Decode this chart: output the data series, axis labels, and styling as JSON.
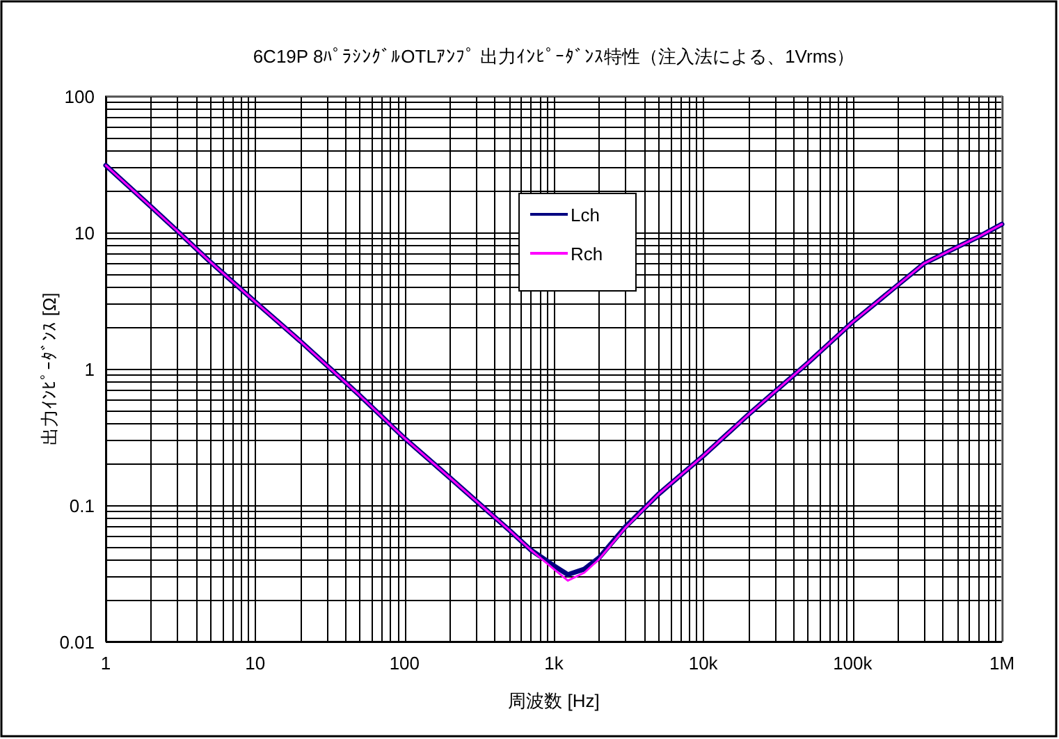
{
  "chart_data": {
    "type": "line",
    "title": "6C19P 8ﾊﾟﾗｼﾝｸﾞﾙOTLｱﾝﾌﾟ 出力ｲﾝﾋﾟｰﾀﾞﾝｽ特性（注入法による、1Vrms）",
    "xlabel": "周波数 [Hz]",
    "ylabel": "出力ｲﾝﾋﾟｰﾀﾞﾝｽ [Ω]",
    "log": "xy",
    "grid": true,
    "legend": "top",
    "marker": "none",
    "line_style": "solid",
    "xlim": [
      1,
      1000000
    ],
    "ylim": [
      0.01,
      100
    ],
    "xticks": [
      1,
      10,
      100,
      {
        "value": 1000,
        "label": "1k"
      },
      {
        "value": 10000,
        "label": "10k"
      },
      {
        "value": 100000,
        "label": "100k"
      },
      {
        "value": 1000000,
        "label": "1M"
      }
    ],
    "yticks": [
      0.01,
      0.1,
      1,
      10,
      100
    ],
    "series": [
      {
        "name": "Lch",
        "color": "#000080",
        "x": [
          1,
          2,
          3,
          5,
          10,
          20,
          50,
          100,
          200,
          500,
          700,
          1000,
          1240,
          1600,
          2000,
          3000,
          5000,
          10000,
          20000,
          50000,
          100000,
          200000,
          300000,
          500000,
          700000,
          1000000
        ],
        "values": [
          31,
          15.5,
          10.3,
          6.1,
          3.1,
          1.6,
          0.64,
          0.31,
          0.16,
          0.066,
          0.047,
          0.036,
          0.031,
          0.034,
          0.041,
          0.069,
          0.12,
          0.23,
          0.46,
          1.1,
          2.2,
          4.1,
          5.9,
          7.8,
          9.3,
          11.5
        ]
      },
      {
        "name": "Rch",
        "color": "#ff00ff",
        "x": [
          1,
          2,
          3,
          5,
          10,
          20,
          50,
          100,
          200,
          500,
          700,
          1000,
          1240,
          1600,
          2000,
          3000,
          5000,
          10000,
          20000,
          50000,
          100000,
          200000,
          300000,
          500000,
          700000,
          1000000
        ],
        "values": [
          31,
          15.5,
          10.3,
          6.1,
          3.1,
          1.6,
          0.64,
          0.31,
          0.16,
          0.066,
          0.047,
          0.034,
          0.028,
          0.032,
          0.04,
          0.068,
          0.12,
          0.23,
          0.46,
          1.1,
          2.2,
          4.1,
          5.9,
          7.8,
          9.3,
          11.5
        ]
      }
    ]
  }
}
